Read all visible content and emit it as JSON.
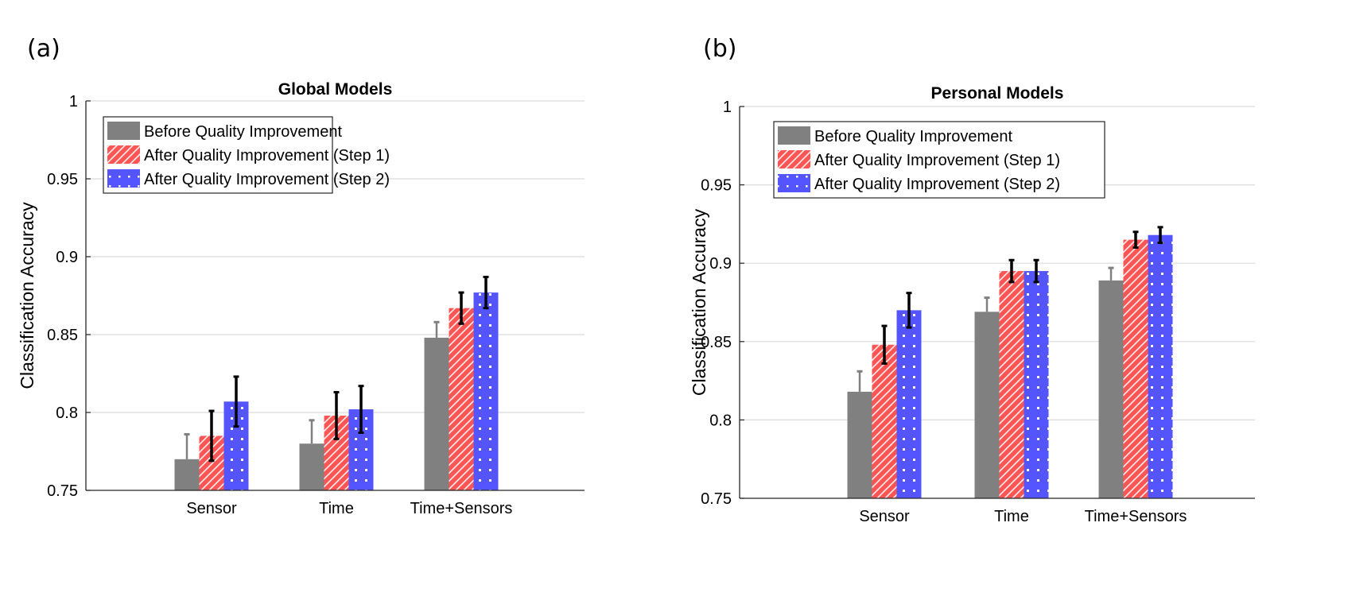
{
  "panels": [
    {
      "label": "(a)"
    },
    {
      "label": "(b)"
    }
  ],
  "legend": [
    {
      "label": "Before Quality Improvement",
      "color": "#808080",
      "pattern": "solid"
    },
    {
      "label": "After Quality Improvement (Step 1)",
      "color": "#ff5555",
      "pattern": "hatch"
    },
    {
      "label": "After Quality Improvement (Step 2)",
      "color": "#5555ff",
      "pattern": "dots"
    }
  ],
  "chart_data": [
    {
      "type": "bar",
      "title": "Global Models",
      "xlabel": "",
      "ylabel": "Classification Accuracy",
      "ylim": [
        0.75,
        1
      ],
      "yticks": [
        "0.75",
        "0.8",
        "0.85",
        "0.9",
        "0.95",
        "1"
      ],
      "grid": true,
      "legend_position": "top-left",
      "categories": [
        "Sensor",
        "Time",
        "Time+Sensors"
      ],
      "series": [
        {
          "name": "Before Quality Improvement",
          "values": [
            0.77,
            0.78,
            0.848
          ],
          "error": [
            0.016,
            0.015,
            0.01
          ],
          "error_color": "#808080"
        },
        {
          "name": "After Quality Improvement (Step 1)",
          "values": [
            0.785,
            0.798,
            0.867
          ],
          "error": [
            0.016,
            0.015,
            0.01
          ],
          "error_color": "#000000"
        },
        {
          "name": "After Quality Improvement (Step 2)",
          "values": [
            0.807,
            0.802,
            0.877
          ],
          "error": [
            0.016,
            0.015,
            0.01
          ],
          "error_color": "#000000"
        }
      ]
    },
    {
      "type": "bar",
      "title": "Personal Models",
      "xlabel": "",
      "ylabel": "Classification Accuracy",
      "ylim": [
        0.75,
        1
      ],
      "yticks": [
        "0.75",
        "0.8",
        "0.85",
        "0.9",
        "0.95",
        "1"
      ],
      "grid": true,
      "legend_position": "top-left",
      "categories": [
        "Sensor",
        "Time",
        "Time+Sensors"
      ],
      "series": [
        {
          "name": "Before Quality Improvement",
          "values": [
            0.818,
            0.869,
            0.889
          ],
          "error": [
            0.013,
            0.009,
            0.008
          ],
          "error_color": "#808080"
        },
        {
          "name": "After Quality Improvement (Step 1)",
          "values": [
            0.848,
            0.895,
            0.915
          ],
          "error": [
            0.012,
            0.007,
            0.005
          ],
          "error_color": "#000000"
        },
        {
          "name": "After Quality Improvement (Step 2)",
          "values": [
            0.87,
            0.895,
            0.918
          ],
          "error": [
            0.011,
            0.007,
            0.005
          ],
          "error_color": "#000000"
        }
      ]
    }
  ]
}
